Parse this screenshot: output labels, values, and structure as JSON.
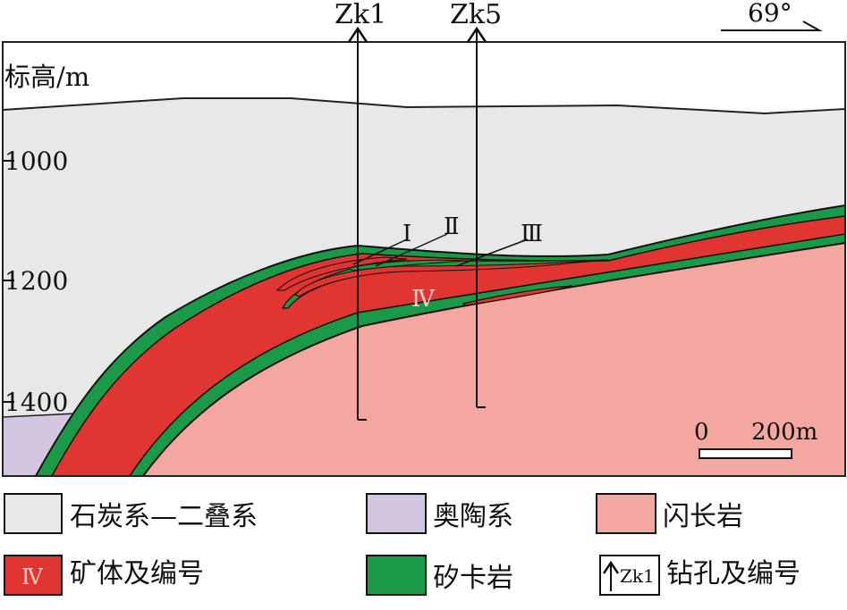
{
  "section": {
    "axis_label": "标高/m",
    "elevation_ticks": [
      "1000",
      "1200",
      "1400"
    ],
    "orientation_label": "69°",
    "drillholes": [
      {
        "label": "Zk1"
      },
      {
        "label": "Zk5"
      }
    ],
    "orebody_labels": [
      "Ⅰ",
      "Ⅱ",
      "Ⅲ",
      "Ⅳ"
    ],
    "scale": {
      "start": "0",
      "end": "200m"
    }
  },
  "legend": {
    "items": [
      {
        "label": "石炭系—二叠系",
        "color": "#e8e8e8"
      },
      {
        "label": "奥陶系",
        "color": "#d3c6e0"
      },
      {
        "label": "闪长岩",
        "color": "#f4a6a0"
      },
      {
        "label": "矿体及编号",
        "color": "#e03530",
        "symbol_text": "Ⅳ"
      },
      {
        "label": "矽卡岩",
        "color": "#189a48"
      },
      {
        "label": "钻孔及编号",
        "symbol_text": "Zk1"
      }
    ]
  }
}
